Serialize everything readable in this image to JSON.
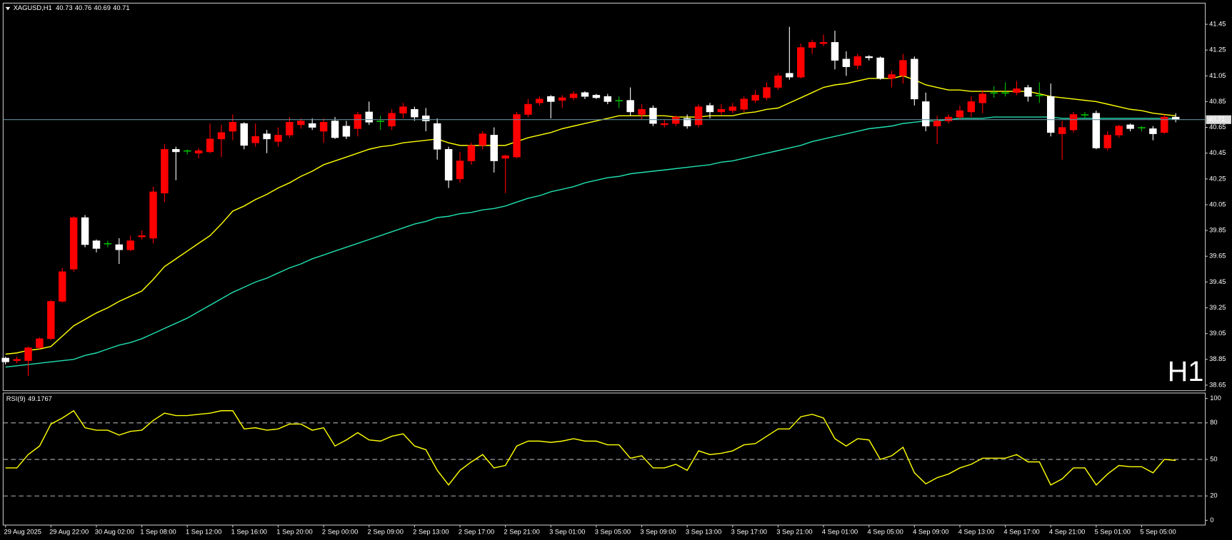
{
  "chart_data": [
    {
      "type": "candlestick",
      "symbol": "XAGUSD,H1",
      "timeframe_label": "H1",
      "up_color": "#ff0000",
      "down_color": "#ffffff",
      "doji_color": "#00c000",
      "price_line_color": "#5f8f9f",
      "ylim": [
        38.607,
        41.608
      ],
      "yticks": [
        38.65,
        38.85,
        39.05,
        39.25,
        39.45,
        39.65,
        39.85,
        40.05,
        40.25,
        40.45,
        40.65,
        40.85,
        41.05,
        41.25,
        41.45
      ],
      "open": [
        38.86,
        38.84,
        38.84,
        38.94,
        39.01,
        39.3,
        39.55,
        39.95,
        39.77,
        39.75,
        39.74,
        39.7,
        39.8,
        39.79,
        40.14,
        40.48,
        40.47,
        40.45,
        40.46,
        40.56,
        40.62,
        40.68,
        40.53,
        40.6,
        40.54,
        40.59,
        40.67,
        40.68,
        40.62,
        40.7,
        40.66,
        40.64,
        40.77,
        40.7,
        40.66,
        40.76,
        40.79,
        40.74,
        40.68,
        40.48,
        40.25,
        40.39,
        40.51,
        40.59,
        40.41,
        40.42,
        40.75,
        40.84,
        40.89,
        40.86,
        40.88,
        40.92,
        40.9,
        40.89,
        40.86,
        40.86,
        40.75,
        40.8,
        40.67,
        40.68,
        40.72,
        40.67,
        40.82,
        40.77,
        40.78,
        40.79,
        40.86,
        40.88,
        40.96,
        41.07,
        41.04,
        41.27,
        41.3,
        41.31,
        41.18,
        41.13,
        41.2,
        41.19,
        41.03,
        41.05,
        41.18,
        40.85,
        40.66,
        40.7,
        40.73,
        40.77,
        40.84,
        40.92,
        40.92,
        40.92,
        40.96,
        40.9,
        40.89,
        40.6,
        40.63,
        40.75,
        40.76,
        40.49,
        40.59,
        40.67,
        40.65,
        40.64,
        40.61,
        40.73
      ],
      "high": [
        38.87,
        38.87,
        38.95,
        39.02,
        39.31,
        39.56,
        39.96,
        39.97,
        39.78,
        39.77,
        39.79,
        39.81,
        39.85,
        40.19,
        40.52,
        40.5,
        40.48,
        40.49,
        40.68,
        40.67,
        40.75,
        40.69,
        40.68,
        40.63,
        40.65,
        40.73,
        40.72,
        40.72,
        40.72,
        40.73,
        40.7,
        40.77,
        40.85,
        40.74,
        40.79,
        40.84,
        40.81,
        40.8,
        40.72,
        40.5,
        40.46,
        40.53,
        40.62,
        40.65,
        40.44,
        40.77,
        40.87,
        40.89,
        40.9,
        40.9,
        40.93,
        40.93,
        40.91,
        40.91,
        40.89,
        40.96,
        40.83,
        40.82,
        40.71,
        40.74,
        40.75,
        40.83,
        40.84,
        40.83,
        40.84,
        40.89,
        40.94,
        41.0,
        41.07,
        41.43,
        41.3,
        41.33,
        41.37,
        41.4,
        41.24,
        41.22,
        41.21,
        41.2,
        41.09,
        41.22,
        41.2,
        40.92,
        40.74,
        40.75,
        40.82,
        40.89,
        40.94,
        40.97,
        41.0,
        41.01,
        40.98,
        41.0,
        40.99,
        40.7,
        40.77,
        40.77,
        40.78,
        40.62,
        40.67,
        40.68,
        40.66,
        40.66,
        40.75,
        40.76
      ],
      "low": [
        38.81,
        38.82,
        38.72,
        38.93,
        39.0,
        39.29,
        39.53,
        39.72,
        39.68,
        39.72,
        39.59,
        39.69,
        39.78,
        39.75,
        40.07,
        40.24,
        40.44,
        40.41,
        40.45,
        40.42,
        40.55,
        40.48,
        40.5,
        40.45,
        40.5,
        40.57,
        40.64,
        40.63,
        40.53,
        40.56,
        40.56,
        40.58,
        40.67,
        40.63,
        40.63,
        40.72,
        40.7,
        40.62,
        40.4,
        40.18,
        40.22,
        40.36,
        40.48,
        40.3,
        40.14,
        40.41,
        40.73,
        40.82,
        40.72,
        40.8,
        40.86,
        40.87,
        40.87,
        40.83,
        40.8,
        40.74,
        40.71,
        40.66,
        40.65,
        40.66,
        40.64,
        40.65,
        40.72,
        40.75,
        40.76,
        40.77,
        40.84,
        40.86,
        40.94,
        41.02,
        41.03,
        41.22,
        41.28,
        41.1,
        41.05,
        41.1,
        41.17,
        41.02,
        40.96,
        40.99,
        40.82,
        40.62,
        40.52,
        40.68,
        40.71,
        40.73,
        40.76,
        40.88,
        40.89,
        40.9,
        40.85,
        40.84,
        40.58,
        40.4,
        40.61,
        40.72,
        40.48,
        40.47,
        40.57,
        40.62,
        40.62,
        40.55,
        40.6,
        40.69
      ],
      "close": [
        38.83,
        38.85,
        38.94,
        39.01,
        39.3,
        39.53,
        39.95,
        39.74,
        39.71,
        39.75,
        39.7,
        39.77,
        39.81,
        40.15,
        40.48,
        40.46,
        40.47,
        40.47,
        40.56,
        40.61,
        40.69,
        40.51,
        40.58,
        40.56,
        40.59,
        40.69,
        40.7,
        40.65,
        40.69,
        40.57,
        40.58,
        40.75,
        40.69,
        40.7,
        40.76,
        40.81,
        40.73,
        40.7,
        40.48,
        40.24,
        40.39,
        40.51,
        40.6,
        40.39,
        40.43,
        40.75,
        40.83,
        40.87,
        40.85,
        40.88,
        40.91,
        40.89,
        40.88,
        40.85,
        40.86,
        40.77,
        40.79,
        40.68,
        40.68,
        40.73,
        40.66,
        40.81,
        40.77,
        40.79,
        40.81,
        40.87,
        40.9,
        40.96,
        41.05,
        41.04,
        41.27,
        41.31,
        41.31,
        41.17,
        41.12,
        41.2,
        41.19,
        41.03,
        41.06,
        41.17,
        40.87,
        40.66,
        40.7,
        40.73,
        40.78,
        40.85,
        40.91,
        40.92,
        40.92,
        40.95,
        40.89,
        40.9,
        40.61,
        40.65,
        40.75,
        40.75,
        40.49,
        40.59,
        40.66,
        40.64,
        40.65,
        40.6,
        40.73,
        40.71
      ],
      "series": [
        {
          "color": "#ffff00",
          "values": [
            38.89,
            38.9,
            38.92,
            38.93,
            38.95,
            39.03,
            39.11,
            39.16,
            39.21,
            39.25,
            39.3,
            39.34,
            39.38,
            39.47,
            39.57,
            39.63,
            39.69,
            39.75,
            39.81,
            39.9,
            40.0,
            40.04,
            40.09,
            40.13,
            40.18,
            40.22,
            40.27,
            40.31,
            40.36,
            40.39,
            40.42,
            40.45,
            40.48,
            40.5,
            40.51,
            40.53,
            40.54,
            40.55,
            40.56,
            40.53,
            40.51,
            40.51,
            40.51,
            40.51,
            40.51,
            40.54,
            40.57,
            40.59,
            40.61,
            40.64,
            40.66,
            40.68,
            40.7,
            40.72,
            40.74,
            40.74,
            40.74,
            40.74,
            40.74,
            40.73,
            40.73,
            40.73,
            40.74,
            40.74,
            40.74,
            40.76,
            40.77,
            40.79,
            40.8,
            40.84,
            40.88,
            40.92,
            40.96,
            40.98,
            40.99,
            41.01,
            41.03,
            41.03,
            41.03,
            41.05,
            41.02,
            40.98,
            40.96,
            40.94,
            40.94,
            40.93,
            40.93,
            40.93,
            40.93,
            40.93,
            40.93,
            40.91,
            40.89,
            40.88,
            40.87,
            40.86,
            40.85,
            40.83,
            40.81,
            40.79,
            40.78,
            40.76,
            40.75,
            40.74
          ]
        },
        {
          "color": "#20e0b0",
          "values": [
            38.79,
            38.8,
            38.81,
            38.82,
            38.83,
            38.84,
            38.85,
            38.88,
            38.9,
            38.93,
            38.96,
            38.98,
            39.01,
            39.05,
            39.09,
            39.13,
            39.17,
            39.22,
            39.27,
            39.32,
            39.37,
            39.41,
            39.45,
            39.48,
            39.52,
            39.56,
            39.59,
            39.63,
            39.66,
            39.69,
            39.72,
            39.75,
            39.78,
            39.81,
            39.84,
            39.87,
            39.9,
            39.92,
            39.95,
            39.96,
            39.98,
            39.99,
            40.01,
            40.02,
            40.04,
            40.07,
            40.1,
            40.12,
            40.15,
            40.17,
            40.19,
            40.22,
            40.24,
            40.26,
            40.27,
            40.29,
            40.3,
            40.31,
            40.32,
            40.33,
            40.34,
            40.35,
            40.36,
            40.38,
            40.39,
            40.41,
            40.43,
            40.45,
            40.47,
            40.49,
            40.51,
            40.54,
            40.56,
            40.58,
            40.6,
            40.62,
            40.64,
            40.65,
            40.66,
            40.68,
            40.69,
            40.7,
            40.7,
            40.71,
            40.72,
            40.72,
            40.72,
            40.73,
            40.73,
            40.73,
            40.73,
            40.73,
            40.73,
            40.72,
            40.72,
            40.72,
            40.72,
            40.72,
            40.72,
            40.72,
            40.72,
            40.72,
            40.72,
            40.72
          ]
        }
      ]
    },
    {
      "type": "line",
      "title": "RSI(9)",
      "color": "#ffff00",
      "level_color": "#b0b0b0",
      "ylim": [
        -3.9,
        104.5
      ],
      "yticks": [
        0,
        20,
        50,
        80,
        100
      ],
      "levels": [
        20,
        50,
        80
      ],
      "categories": [
        "29 Aug 2025",
        null,
        null,
        null,
        "29 Aug 22:00",
        null,
        null,
        null,
        "30 Aug 02:00",
        null,
        null,
        null,
        "1 Sep 08:00",
        null,
        null,
        null,
        "1 Sep 12:00",
        null,
        null,
        null,
        "1 Sep 16:00",
        null,
        null,
        null,
        "1 Sep 20:00",
        null,
        null,
        null,
        "2 Sep 00:00",
        null,
        null,
        null,
        "2 Sep 09:00",
        null,
        null,
        null,
        "2 Sep 13:00",
        null,
        null,
        null,
        "2 Sep 17:00",
        null,
        null,
        null,
        "2 Sep 21:00",
        null,
        null,
        null,
        "3 Sep 01:00",
        null,
        null,
        null,
        "3 Sep 05:00",
        null,
        null,
        null,
        "3 Sep 09:00",
        null,
        null,
        null,
        "3 Sep 13:00",
        null,
        null,
        null,
        "3 Sep 17:00",
        null,
        null,
        null,
        "3 Sep 21:00",
        null,
        null,
        null,
        "4 Sep 01:00",
        null,
        null,
        null,
        "4 Sep 05:00",
        null,
        null,
        null,
        "4 Sep 09:00",
        null,
        null,
        null,
        "4 Sep 13:00",
        null,
        null,
        null,
        "4 Sep 17:00",
        null,
        null,
        null,
        "4 Sep 21:00",
        null,
        null,
        null,
        "5 Sep 01:00",
        null,
        null,
        null,
        "5 Sep 05:00",
        null,
        null,
        null
      ],
      "values": [
        43,
        43,
        54,
        61,
        79,
        84,
        90,
        76,
        74,
        74,
        70,
        73,
        74,
        82,
        88,
        86,
        86,
        87,
        88,
        90,
        90,
        75,
        76,
        74,
        75,
        79,
        79,
        74,
        76,
        61,
        66,
        72,
        66,
        65,
        69,
        71,
        61,
        58,
        41,
        29,
        41,
        48,
        54,
        43,
        45,
        61,
        65,
        65,
        64,
        65,
        67,
        65,
        65,
        62,
        62,
        51,
        53,
        43,
        43,
        46,
        41,
        57,
        54,
        55,
        57,
        62,
        63,
        69,
        75,
        75,
        85,
        87,
        84,
        67,
        61,
        67,
        66,
        50,
        53,
        60,
        39,
        30,
        35,
        38,
        43,
        46,
        51,
        51,
        51,
        54,
        48,
        48,
        29,
        34,
        43,
        43,
        29,
        38,
        45,
        44,
        44,
        39,
        50,
        49.1767
      ]
    }
  ]
}
